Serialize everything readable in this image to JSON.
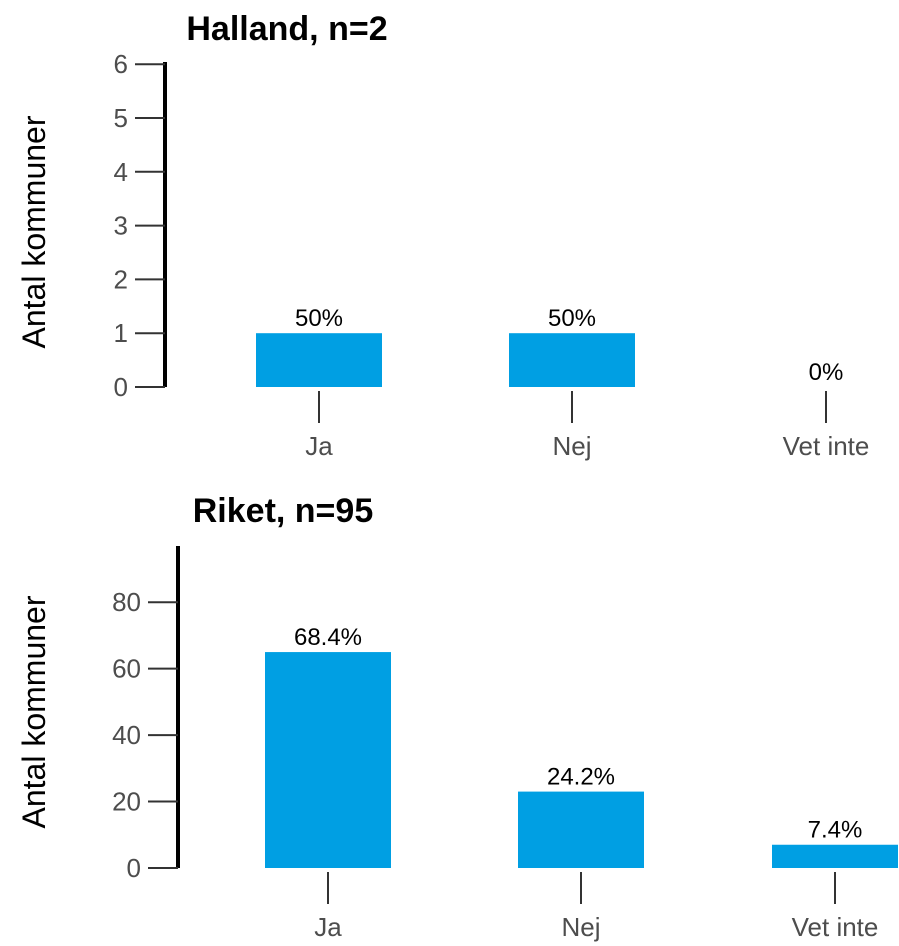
{
  "chart_data": [
    {
      "type": "bar",
      "title": "Halland, n=2",
      "ylabel": "Antal kommuner",
      "xlabel": "",
      "categories": [
        "Ja",
        "Nej",
        "Vet inte"
      ],
      "values": [
        1,
        1,
        0
      ],
      "labels": [
        "50%",
        "50%",
        "0%"
      ],
      "ylim": [
        0,
        6
      ],
      "yticks": [
        0,
        1,
        2,
        3,
        4,
        5,
        6
      ],
      "color": "#009fe3",
      "grid": false
    },
    {
      "type": "bar",
      "title": "Riket, n=95",
      "ylabel": "Antal kommuner",
      "xlabel": "",
      "categories": [
        "Ja",
        "Nej",
        "Vet inte"
      ],
      "values": [
        65,
        23,
        7
      ],
      "labels": [
        "68.4%",
        "24.2%",
        "7.4%"
      ],
      "ylim": [
        0,
        95
      ],
      "yticks": [
        0,
        20,
        40,
        60,
        80
      ],
      "color": "#009fe3",
      "grid": false
    }
  ]
}
